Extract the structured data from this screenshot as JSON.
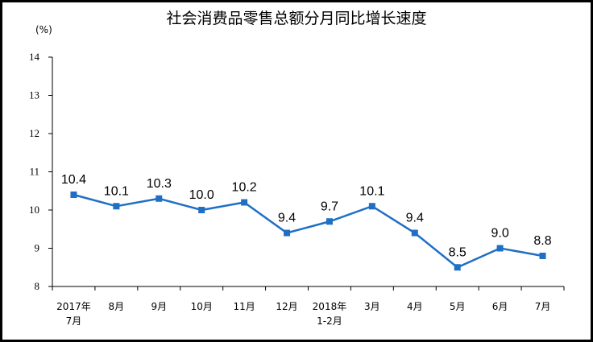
{
  "title": "社会消费品零售总额分月同比增长速度",
  "unit": "(%)",
  "chart_data": {
    "type": "line",
    "title": "社会消费品零售总额分月同比增长速度",
    "ylabel": "(%)",
    "xlabel": "",
    "ylim": [
      8,
      14
    ],
    "yticks": [
      8,
      9,
      10,
      11,
      12,
      13,
      14
    ],
    "categories": [
      [
        "2017年",
        "7月"
      ],
      [
        "8月"
      ],
      [
        "9月"
      ],
      [
        "10月"
      ],
      [
        "11月"
      ],
      [
        "12月"
      ],
      [
        "2018年",
        "1-2月"
      ],
      [
        "3月"
      ],
      [
        "4月"
      ],
      [
        "5月"
      ],
      [
        "6月"
      ],
      [
        "7月"
      ]
    ],
    "series": [
      {
        "values": [
          10.4,
          10.1,
          10.3,
          10.0,
          10.2,
          9.4,
          9.7,
          10.1,
          9.4,
          8.5,
          9.0,
          8.8
        ],
        "labels": [
          "10.4",
          "10.1",
          "10.3",
          "10.0",
          "10.2",
          "9.4",
          "9.7",
          "10.1",
          "9.4",
          "8.5",
          "9.0",
          "8.8"
        ],
        "color": "#1f6fc5"
      }
    ],
    "grid": false,
    "legend": "none"
  }
}
